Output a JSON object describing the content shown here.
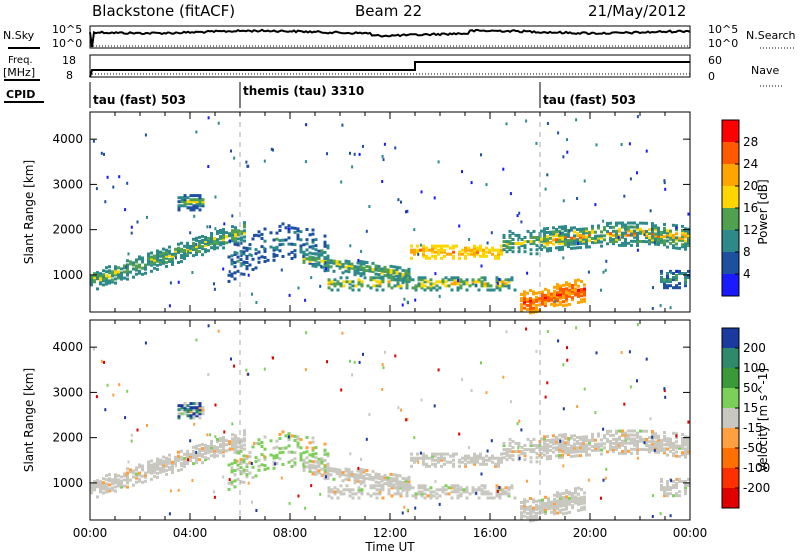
{
  "header": {
    "station": "Blackstone (fitACF)",
    "beam": "Beam 22",
    "date": "21/May/2012"
  },
  "left_labels": {
    "nsky": "N.Sky",
    "freq": "Freq.",
    "freq_unit": "[MHz]",
    "cpid": "CPID"
  },
  "right_labels": {
    "nsearch": "N.Search",
    "nave": "Nave"
  },
  "strip_ticks": {
    "noise_top": "10^5",
    "noise_bottom": "10^0",
    "freq_top": "18",
    "freq_bottom": "8",
    "nave_top": "60",
    "nave_bottom": "0"
  },
  "cpid_segments": [
    {
      "label": "tau (fast) 503",
      "start_hour": 0
    },
    {
      "label": "themis (tau) 3310",
      "start_hour": 6
    },
    {
      "label": "tau (fast) 503",
      "start_hour": 18
    }
  ],
  "axes": {
    "xlabel": "Time UT",
    "ylabel": "Slant Range [km]",
    "x_ticks": [
      "00:00",
      "04:00",
      "08:00",
      "12:00",
      "16:00",
      "20:00",
      "00:00"
    ],
    "y_ticks": [
      "1000",
      "2000",
      "3000",
      "4000"
    ]
  },
  "chart_data": [
    {
      "type": "heatmap",
      "title": "",
      "xlabel": "",
      "ylabel": "Slant Range [km]",
      "x_range_hours": [
        0,
        24
      ],
      "y_range_km": [
        180,
        4600
      ],
      "colorbar": {
        "label": "Power [dB]",
        "ticks": [
          "4",
          "8",
          "12",
          "16",
          "20",
          "24",
          "28"
        ],
        "colors": [
          "#1a1aff",
          "#1e50a0",
          "#2e8a8a",
          "#50a050",
          "#ffd700",
          "#ffa500",
          "#ff5a00",
          "#ff0000"
        ]
      }
    },
    {
      "type": "heatmap",
      "title": "",
      "xlabel": "Time UT",
      "ylabel": "Slant Range [km]",
      "x_range_hours": [
        0,
        24
      ],
      "y_range_km": [
        180,
        4600
      ],
      "colorbar": {
        "label": "Velocity [m s^-1]",
        "ticks": [
          "200",
          "100",
          "50",
          "15",
          "-15",
          "-50",
          "-100",
          "-200"
        ],
        "colors": [
          "#1a3aa0",
          "#2e8a6a",
          "#3a9a3a",
          "#7cd05a",
          "#c8c8c0",
          "#ffa040",
          "#ff7000",
          "#ff3000",
          "#e00000"
        ]
      }
    }
  ]
}
